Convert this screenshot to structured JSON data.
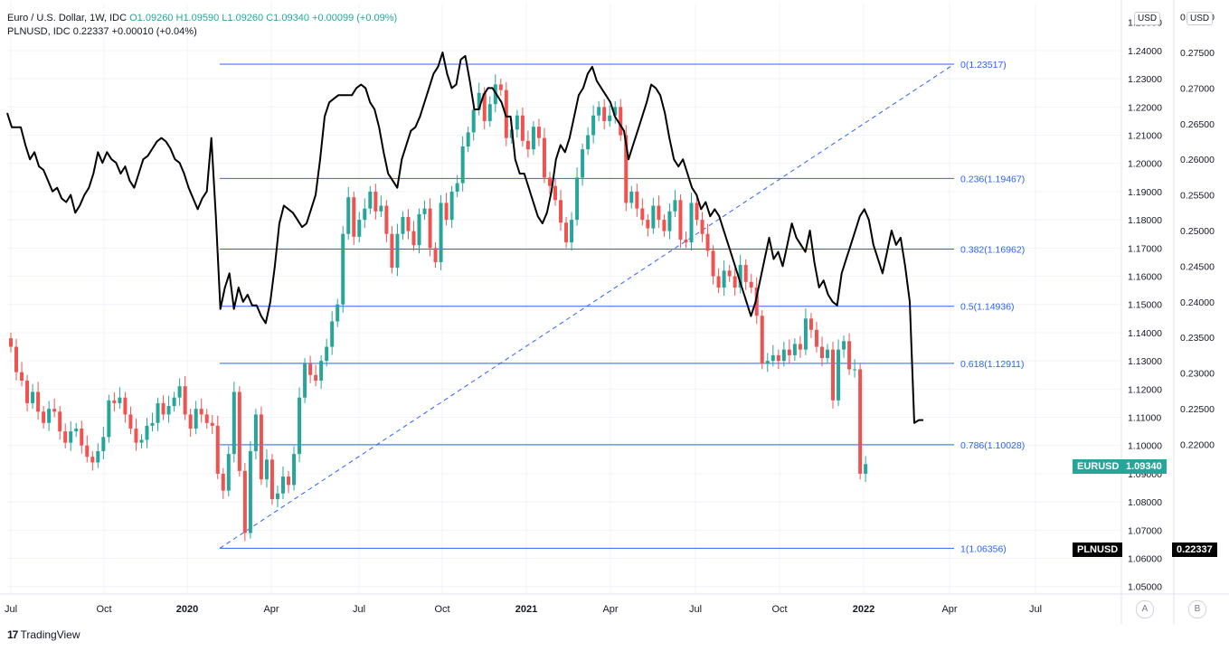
{
  "legend": {
    "line1_prefix": "Euro / U.S. Dollar, 1W, IDC",
    "o": "O1.09260",
    "h": "H1.09590",
    "l": "L1.09260",
    "c": "C1.09340",
    "chg": "+0.00099 (+0.09%)",
    "line2": "PLNUSD, IDC  0.22337  +0.00010 (+0.04%)"
  },
  "units": {
    "left": "USD",
    "right": "USD"
  },
  "badges": {
    "eurusd_name": "EURUSD",
    "eurusd_value": "1.09340",
    "plnusd_name": "PLNUSD",
    "plnusd_value": "0.22337"
  },
  "axis_buttons": {
    "a": "A",
    "b": "B"
  },
  "branding": {
    "logo_mark": "17",
    "name": "TradingView"
  },
  "colors": {
    "up": "#26a69a",
    "down": "#ef5350",
    "fib": "#2962ff",
    "pln_line": "#000000",
    "eurusd_badge": "#26a69a",
    "plnusd_badge": "#000000"
  },
  "chart_data": {
    "type": "line",
    "x_ticks": [
      "Jul",
      "Oct",
      "2020",
      "Apr",
      "Jul",
      "Oct",
      "2021",
      "Apr",
      "Jul",
      "Oct",
      "2022",
      "Apr",
      "Jul"
    ],
    "bold_ticks": [
      "2020",
      "2021",
      "2022"
    ],
    "eurusd_axis": {
      "ticks": [
        "1.24000",
        "1.23000",
        "1.22000",
        "1.21000",
        "1.20000",
        "1.19000",
        "1.18000",
        "1.17000",
        "1.16000",
        "1.15000",
        "1.14000",
        "1.13000",
        "1.12000",
        "1.11000",
        "1.10000",
        "1.09000",
        "1.08000",
        "1.07000",
        "1.06000",
        "1.05000"
      ],
      "top_label": "1.25000",
      "range": [
        1.045,
        1.255
      ]
    },
    "plnusd_axis": {
      "ticks": [
        "0.28000",
        "0.27500",
        "0.27000",
        "0.26500",
        "0.26000",
        "0.25500",
        "0.25000",
        "0.24500",
        "0.24000",
        "0.23500",
        "0.23000",
        "0.22500",
        "0.22000"
      ],
      "range": [
        0.2155,
        0.2805
      ]
    },
    "fibonacci": [
      {
        "label": "0(1.23517)",
        "level": 1.23517
      },
      {
        "label": "0.236(1.19467)",
        "level": 1.19467
      },
      {
        "label": "0.382(1.16962)",
        "level": 1.16962
      },
      {
        "label": "0.5(1.14936)",
        "level": 1.14936
      },
      {
        "label": "0.618(1.12911)",
        "level": 1.12911
      },
      {
        "label": "0.786(1.10028)",
        "level": 1.10028
      },
      {
        "label": "1(1.06356)",
        "level": 1.06356
      }
    ],
    "eurusd_closes": [
      1.135,
      1.126,
      1.123,
      1.115,
      1.119,
      1.112,
      1.108,
      1.113,
      1.112,
      1.105,
      1.101,
      1.105,
      1.106,
      1.1,
      1.096,
      1.094,
      1.098,
      1.103,
      1.116,
      1.115,
      1.117,
      1.111,
      1.106,
      1.101,
      1.102,
      1.107,
      1.108,
      1.115,
      1.111,
      1.114,
      1.117,
      1.121,
      1.111,
      1.106,
      1.113,
      1.111,
      1.108,
      1.107,
      1.09,
      1.084,
      1.097,
      1.119,
      1.091,
      1.069,
      1.098,
      1.111,
      1.088,
      1.095,
      1.081,
      1.083,
      1.089,
      1.086,
      1.097,
      1.117,
      1.129,
      1.125,
      1.123,
      1.13,
      1.135,
      1.144,
      1.15,
      1.175,
      1.188,
      1.174,
      1.18,
      1.184,
      1.19,
      1.183,
      1.185,
      1.175,
      1.163,
      1.175,
      1.181,
      1.176,
      1.171,
      1.182,
      1.184,
      1.17,
      1.165,
      1.186,
      1.18,
      1.19,
      1.193,
      1.206,
      1.211,
      1.219,
      1.225,
      1.215,
      1.221,
      1.228,
      1.226,
      1.209,
      1.212,
      1.217,
      1.208,
      1.205,
      1.213,
      1.209,
      1.195,
      1.192,
      1.187,
      1.179,
      1.172,
      1.18,
      1.195,
      1.205,
      1.21,
      1.217,
      1.22,
      1.215,
      1.217,
      1.22,
      1.21,
      1.186,
      1.19,
      1.184,
      1.18,
      1.177,
      1.185,
      1.18,
      1.176,
      1.183,
      1.187,
      1.173,
      1.172,
      1.186,
      1.18,
      1.175,
      1.169,
      1.16,
      1.156,
      1.162,
      1.16,
      1.156,
      1.164,
      1.158,
      1.156,
      1.146,
      1.129,
      1.13,
      1.132,
      1.13,
      1.134,
      1.132,
      1.136,
      1.134,
      1.145,
      1.141,
      1.135,
      1.131,
      1.134,
      1.116,
      1.134,
      1.137,
      1.127,
      1.127,
      1.09,
      1.0934
    ],
    "plnusd_closes": [
      0.2665,
      0.2645,
      0.2645,
      0.2645,
      0.262,
      0.26,
      0.261,
      0.259,
      0.2585,
      0.257,
      0.2555,
      0.256,
      0.2545,
      0.254,
      0.255,
      0.2525,
      0.2535,
      0.255,
      0.256,
      0.258,
      0.261,
      0.2595,
      0.261,
      0.26,
      0.2595,
      0.258,
      0.259,
      0.257,
      0.256,
      0.258,
      0.26,
      0.2605,
      0.2615,
      0.2625,
      0.263,
      0.2625,
      0.2615,
      0.26,
      0.2595,
      0.258,
      0.256,
      0.2545,
      0.253,
      0.2545,
      0.2555,
      0.263,
      0.252,
      0.239,
      0.242,
      0.244,
      0.239,
      0.242,
      0.24,
      0.241,
      0.2395,
      0.2395,
      0.238,
      0.237,
      0.24,
      0.245,
      0.251,
      0.2535,
      0.253,
      0.2525,
      0.2515,
      0.2505,
      0.251,
      0.253,
      0.255,
      0.26,
      0.266,
      0.268,
      0.2685,
      0.269,
      0.269,
      0.269,
      0.269,
      0.27,
      0.2705,
      0.27,
      0.268,
      0.267,
      0.2645,
      0.261,
      0.258,
      0.257,
      0.256,
      0.26,
      0.262,
      0.264,
      0.2645,
      0.266,
      0.268,
      0.27,
      0.272,
      0.273,
      0.275,
      0.272,
      0.27,
      0.2705,
      0.274,
      0.2745,
      0.271,
      0.267,
      0.267,
      0.269,
      0.27,
      0.27,
      0.269,
      0.268,
      0.266,
      0.266,
      0.26,
      0.258,
      0.258,
      0.256,
      0.254,
      0.252,
      0.251,
      0.2525,
      0.2555,
      0.26,
      0.262,
      0.261,
      0.263,
      0.266,
      0.269,
      0.27,
      0.272,
      0.273,
      0.271,
      0.27,
      0.269,
      0.268,
      0.266,
      0.265,
      0.264,
      0.26,
      0.262,
      0.264,
      0.266,
      0.268,
      0.2705,
      0.27,
      0.269,
      0.2665,
      0.263,
      0.26,
      0.259,
      0.26,
      0.258,
      0.256,
      0.255,
      0.253,
      0.254,
      0.252,
      0.253,
      0.252,
      0.25,
      0.248,
      0.246,
      0.244,
      0.242,
      0.24,
      0.238,
      0.24,
      0.243,
      0.246,
      0.249,
      0.246,
      0.247,
      0.245,
      0.248,
      0.251,
      0.249,
      0.248,
      0.247,
      0.25,
      0.2455,
      0.242,
      0.243,
      0.241,
      0.24,
      0.2395,
      0.244,
      0.246,
      0.248,
      0.25,
      0.252,
      0.253,
      0.2515,
      0.248,
      0.246,
      0.244,
      0.247,
      0.25,
      0.248,
      0.249,
      0.245,
      0.24,
      0.223,
      0.2234,
      0.2234
    ]
  }
}
